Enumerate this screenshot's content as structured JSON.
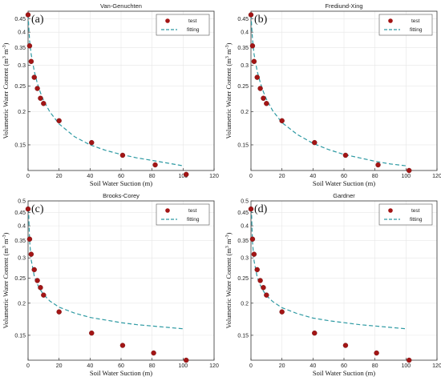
{
  "figure": {
    "xlabel": "Soil Water Suction (m)",
    "ylabel_text": "Volumetric  Water Content (m",
    "ylabel_unit": "3",
    "ylabel_mid": "m",
    "ylabel_close": ")",
    "legend_test": "test",
    "legend_fitting": "fitting"
  },
  "colors": {
    "test_marker": "#a31515",
    "fitting_line": "#2e9aa3",
    "axis": "#333333",
    "grid": "#e6e6e6"
  },
  "chart_data": [
    {
      "type": "scatter",
      "panel_label": "(a)",
      "title": "Van-Genuchten",
      "xlabel": "Soil Water Suction (m)",
      "ylabel": "Volumetric Water Content (m3 m-3)",
      "xlim": [
        0,
        120
      ],
      "ylim": [
        0.12,
        0.48
      ],
      "yscale": "log",
      "xticks": [
        0,
        20,
        40,
        60,
        80,
        100,
        120
      ],
      "yticks": [
        0.15,
        0.2,
        0.25,
        0.3,
        0.35,
        0.4,
        0.45
      ],
      "ytick_labels": [
        "0.15",
        "0.2",
        "0.25",
        "0.3",
        "0.35",
        "0.4",
        "0.45"
      ],
      "legend": "top-right",
      "grid": true,
      "series": [
        {
          "name": "test",
          "kind": "points",
          "x": [
            0,
            1,
            2,
            4,
            6,
            8,
            10,
            20,
            41,
            61,
            82,
            102
          ],
          "y": [
            0.465,
            0.355,
            0.31,
            0.27,
            0.245,
            0.225,
            0.215,
            0.185,
            0.153,
            0.137,
            0.126,
            0.116
          ]
        },
        {
          "name": "fitting",
          "kind": "line",
          "x": [
            0,
            1,
            2,
            4,
            6,
            8,
            10,
            14,
            20,
            30,
            40,
            50,
            60,
            70,
            80,
            90,
            100
          ],
          "y": [
            0.465,
            0.37,
            0.33,
            0.285,
            0.256,
            0.236,
            0.221,
            0.2,
            0.18,
            0.161,
            0.15,
            0.143,
            0.138,
            0.134,
            0.131,
            0.128,
            0.125
          ]
        }
      ]
    },
    {
      "type": "scatter",
      "panel_label": "(b)",
      "title": "Frediund-Xing",
      "xlabel": "Soil Water Suction (m)",
      "ylabel": "Volumetric Water Content (m3 m-3)",
      "xlim": [
        0,
        120
      ],
      "ylim": [
        0.12,
        0.48
      ],
      "yscale": "log",
      "xticks": [
        0,
        20,
        40,
        60,
        80,
        100,
        120
      ],
      "yticks": [
        0.15,
        0.2,
        0.25,
        0.3,
        0.35,
        0.4,
        0.45
      ],
      "ytick_labels": [
        "0.15",
        "0.2",
        "0.25",
        "0.3",
        "0.35",
        "0.4",
        "0.45"
      ],
      "legend": "top-right",
      "grid": true,
      "series": [
        {
          "name": "test",
          "kind": "points",
          "x": [
            0,
            1,
            2,
            4,
            6,
            8,
            10,
            20,
            41,
            61,
            82,
            102
          ],
          "y": [
            0.465,
            0.355,
            0.31,
            0.27,
            0.245,
            0.225,
            0.215,
            0.185,
            0.153,
            0.137,
            0.126,
            0.12
          ]
        },
        {
          "name": "fitting",
          "kind": "line",
          "x": [
            0,
            1,
            2,
            4,
            6,
            8,
            10,
            14,
            20,
            30,
            40,
            50,
            60,
            70,
            80,
            90,
            100
          ],
          "y": [
            0.465,
            0.375,
            0.33,
            0.285,
            0.258,
            0.238,
            0.223,
            0.202,
            0.182,
            0.164,
            0.152,
            0.144,
            0.138,
            0.134,
            0.13,
            0.127,
            0.125
          ]
        }
      ]
    },
    {
      "type": "scatter",
      "panel_label": "(c)",
      "title": "Brooks-Corey",
      "xlabel": "Soil Water Suction (m)",
      "ylabel": "Volumetric Water Content (m3 m-3)",
      "xlim": [
        0,
        120
      ],
      "ylim": [
        0.12,
        0.5
      ],
      "yscale": "log",
      "xticks": [
        0,
        20,
        40,
        60,
        80,
        100,
        120
      ],
      "yticks": [
        0.15,
        0.2,
        0.25,
        0.3,
        0.35,
        0.4,
        0.45,
        0.5
      ],
      "ytick_labels": [
        "0.15",
        "0.2",
        "0.25",
        "0.3",
        "0.35",
        "0.4",
        "0.45",
        "0.5"
      ],
      "legend": "top-right",
      "grid": true,
      "series": [
        {
          "name": "test",
          "kind": "points",
          "x": [
            0,
            1,
            2,
            4,
            6,
            8,
            10,
            20,
            41,
            61,
            81,
            102
          ],
          "y": [
            0.465,
            0.355,
            0.31,
            0.27,
            0.245,
            0.23,
            0.215,
            0.185,
            0.153,
            0.137,
            0.128,
            0.12
          ]
        },
        {
          "name": "fitting",
          "kind": "line",
          "x": [
            0,
            0.3,
            0.6,
            1,
            2,
            4,
            6,
            8,
            10,
            14,
            20,
            30,
            40,
            50,
            60,
            70,
            80,
            90,
            100
          ],
          "y": [
            0.465,
            0.465,
            0.41,
            0.35,
            0.295,
            0.255,
            0.237,
            0.225,
            0.216,
            0.204,
            0.193,
            0.183,
            0.176,
            0.172,
            0.168,
            0.165,
            0.163,
            0.161,
            0.159
          ]
        }
      ]
    },
    {
      "type": "scatter",
      "panel_label": "(d)",
      "title": "Gardner",
      "xlabel": "Soil Water Suction (m)",
      "ylabel": "Volumetric Water Content (m3 m-3)",
      "xlim": [
        0,
        120
      ],
      "ylim": [
        0.12,
        0.5
      ],
      "yscale": "log",
      "xticks": [
        0,
        20,
        40,
        60,
        80,
        100,
        120
      ],
      "yticks": [
        0.15,
        0.2,
        0.25,
        0.3,
        0.35,
        0.4,
        0.45,
        0.5
      ],
      "ytick_labels": [
        "0.15",
        "0.2",
        "0.25",
        "0.3",
        "0.35",
        "0.4",
        "0.45",
        "0.5"
      ],
      "legend": "top-right",
      "grid": true,
      "series": [
        {
          "name": "test",
          "kind": "points",
          "x": [
            0,
            1,
            2,
            4,
            6,
            8,
            10,
            20,
            41,
            61,
            81,
            102
          ],
          "y": [
            0.465,
            0.355,
            0.31,
            0.27,
            0.245,
            0.23,
            0.215,
            0.185,
            0.153,
            0.137,
            0.128,
            0.12
          ]
        },
        {
          "name": "fitting",
          "kind": "line",
          "x": [
            0,
            0.3,
            0.6,
            1,
            2,
            4,
            6,
            8,
            10,
            14,
            20,
            30,
            40,
            50,
            60,
            70,
            80,
            90,
            100
          ],
          "y": [
            0.465,
            0.465,
            0.4,
            0.345,
            0.292,
            0.253,
            0.235,
            0.223,
            0.214,
            0.203,
            0.192,
            0.182,
            0.175,
            0.171,
            0.168,
            0.165,
            0.163,
            0.161,
            0.159
          ]
        }
      ]
    }
  ]
}
